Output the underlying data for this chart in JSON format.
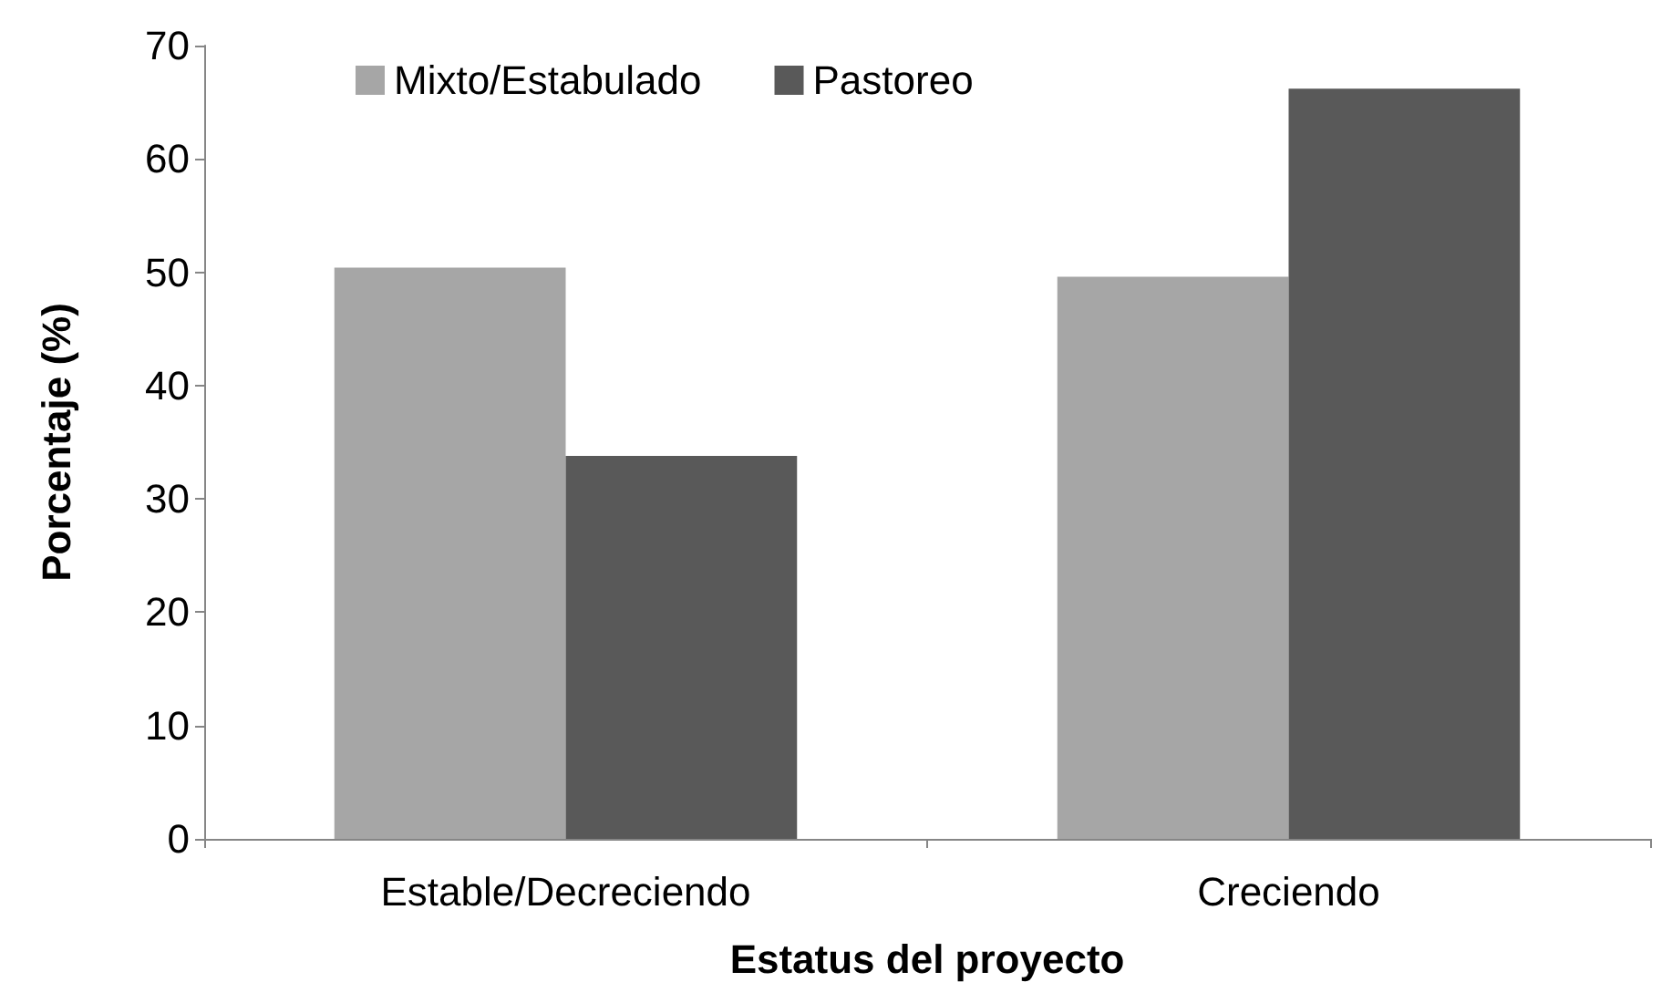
{
  "chart_data": {
    "type": "bar",
    "xlabel": "Estatus del proyecto",
    "ylabel": "Porcentaje (%)",
    "categories": [
      "Estable/Decreciendo",
      "Creciendo"
    ],
    "series": [
      {
        "name": "Mixto/Estabulado",
        "color": "#a6a6a6",
        "values": [
          50.4,
          49.6
        ]
      },
      {
        "name": "Pastoreo",
        "color": "#595959",
        "values": [
          33.8,
          66.2
        ]
      }
    ],
    "ylim": [
      0,
      70
    ],
    "yticks": [
      0,
      10,
      20,
      30,
      40,
      50,
      60,
      70
    ],
    "grid": false,
    "legend": "top"
  }
}
